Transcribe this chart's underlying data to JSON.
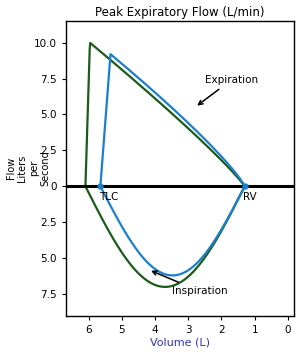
{
  "title": "Peak Expiratory Flow (L/min)",
  "xlabel": "Volume (L)",
  "ylabel_chars": [
    "F",
    "l",
    "o",
    "w",
    " ",
    "L",
    "i",
    "t",
    "e",
    "r",
    "s",
    " ",
    "p",
    "e",
    "r",
    " ",
    "S",
    "e",
    "c",
    "o",
    "n",
    "d"
  ],
  "xlim": [
    6.7,
    -0.2
  ],
  "ylim": [
    -9.0,
    11.5
  ],
  "yticks": [
    -7.5,
    -5.0,
    -2.5,
    0,
    2.5,
    5.0,
    7.5,
    10.0
  ],
  "yticklabels": [
    "7.5",
    "5.0",
    "2.5",
    "0",
    "2.5",
    "5.0",
    "7.5",
    "10.0"
  ],
  "xticks": [
    6,
    5,
    4,
    3,
    2,
    1,
    0
  ],
  "tlc_x": 5.65,
  "rv_x": 1.3,
  "blue_color": "#1a7fcc",
  "green_color": "#1a5c1a",
  "title_color": "#000000",
  "xlabel_color": "#3333aa",
  "ylabel_color": "#000000",
  "figsize": [
    3.0,
    3.53
  ],
  "dpi": 100,
  "blue_tlc": 5.65,
  "blue_rv": 1.3,
  "blue_exp_peak": 9.2,
  "blue_exp_peak_x": 5.3,
  "blue_insp_peak": -6.2,
  "green_tlc": 6.1,
  "green_rv": 1.3,
  "green_exp_peak": 10.0,
  "green_insp_peak": -7.0
}
